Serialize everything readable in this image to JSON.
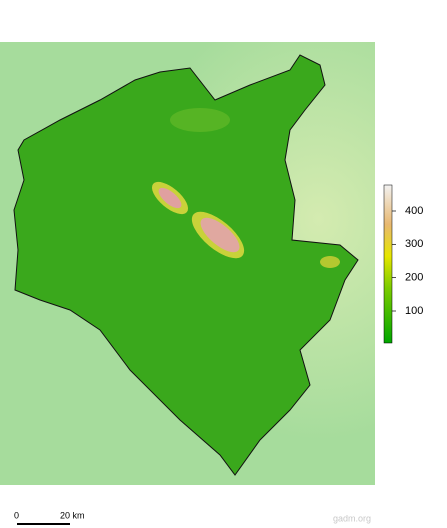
{
  "legend": {
    "range": [
      4,
      478
    ],
    "ticks": [
      100,
      200,
      300,
      400
    ]
  },
  "scale_bar": {
    "start": "0",
    "end": "20 km"
  },
  "credit": "gadm.org"
}
